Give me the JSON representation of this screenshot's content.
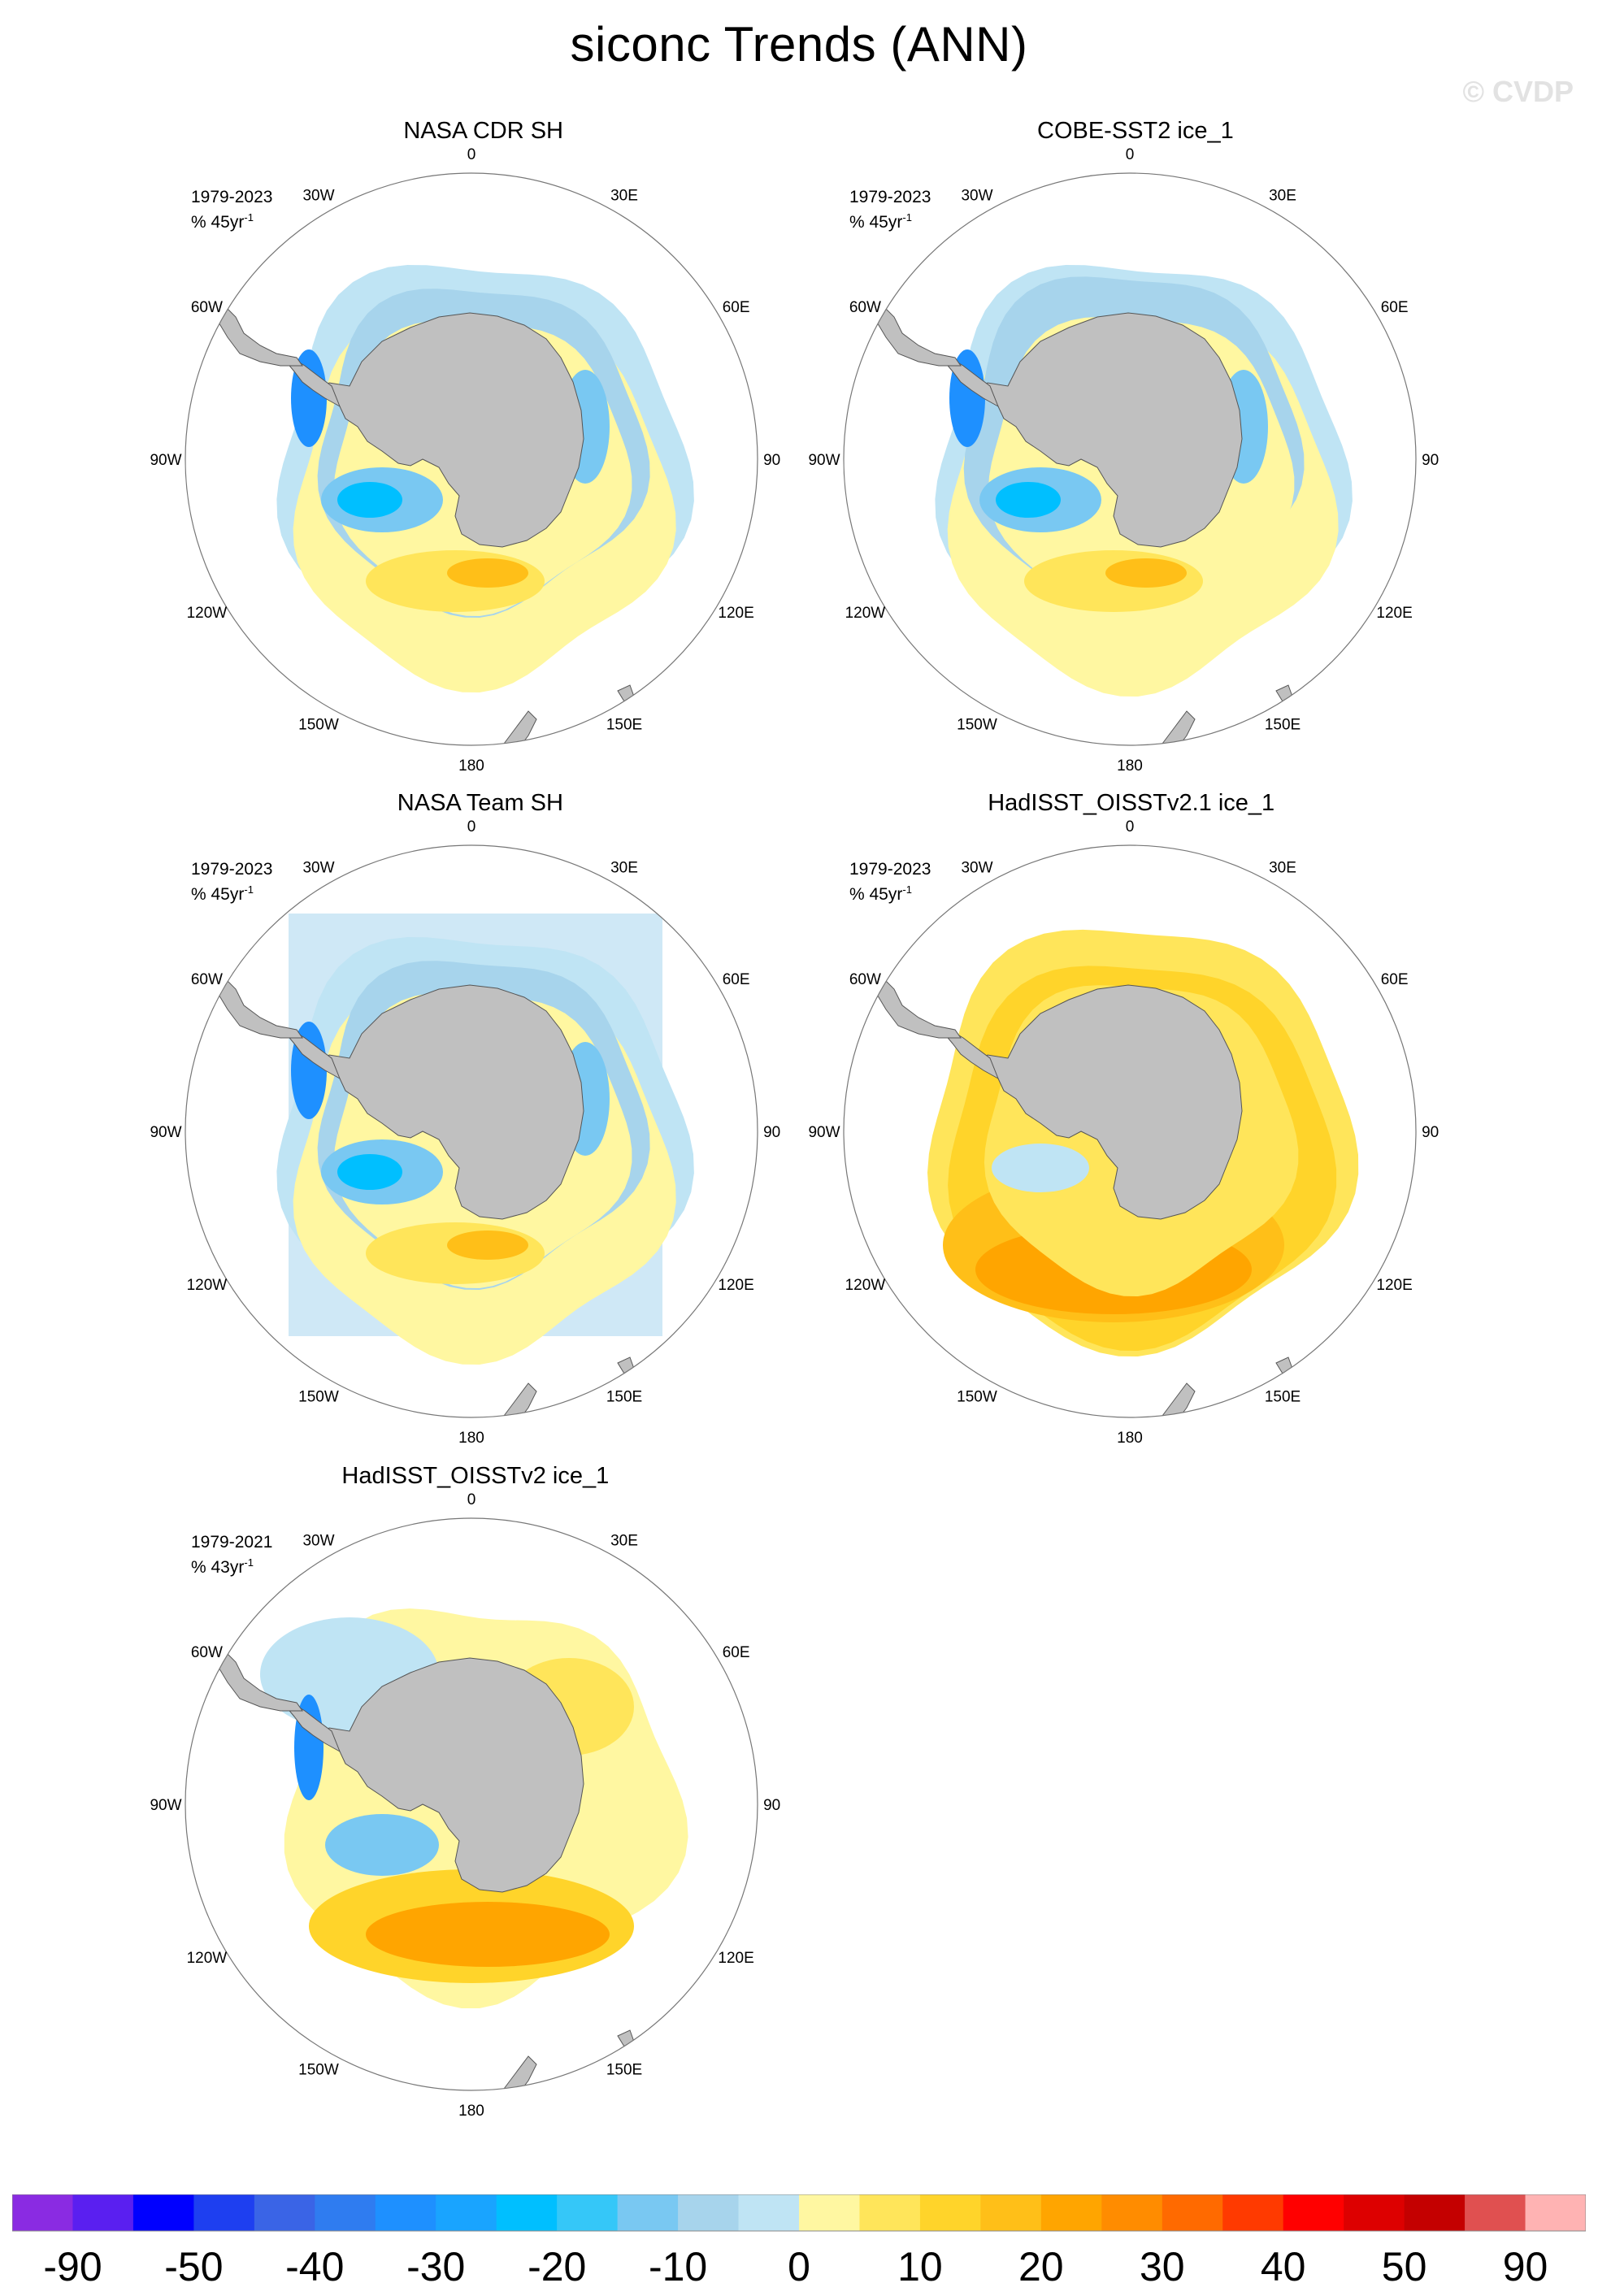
{
  "title": "siconc Trends (ANN)",
  "watermark": "© CVDP",
  "lon_labels": [
    "0",
    "30E",
    "60E",
    "90E",
    "120E",
    "150E",
    "180",
    "150W",
    "120W",
    "90W",
    "60W",
    "30W"
  ],
  "panels": [
    {
      "title": "NASA CDR SH",
      "period": "1979-2023",
      "units": "% 45yr",
      "units_exp": "-1",
      "pattern": "cdr"
    },
    {
      "title": "COBE-SST2 ice_1",
      "period": "1979-2023",
      "units": "% 45yr",
      "units_exp": "-1",
      "pattern": "cobe"
    },
    {
      "title": "NASA Team SH",
      "period": "1979-2023",
      "units": "% 45yr",
      "units_exp": "-1",
      "pattern": "team"
    },
    {
      "title": "HadISST_OISSTv2.1 ice_1",
      "period": "1979-2023",
      "units": "% 45yr",
      "units_exp": "-1",
      "pattern": "had21"
    },
    {
      "title": "HadISST_OISSTv2 ice_1",
      "period": "1979-2021",
      "units": "% 43yr",
      "units_exp": "-1",
      "pattern": "had2"
    }
  ],
  "colorbar": {
    "colors": [
      "#8a2be2",
      "#5a1ff0",
      "#0000ff",
      "#1e3ff0",
      "#3a64e6",
      "#2f7cf0",
      "#1e90ff",
      "#19a4ff",
      "#00bfff",
      "#35c7f8",
      "#79c8f2",
      "#a7d4ec",
      "#bfe4f4",
      "#fff7a1",
      "#ffe55a",
      "#ffd42a",
      "#ffbf18",
      "#ffa500",
      "#ff8c00",
      "#ff6a00",
      "#ff3a00",
      "#ff0000",
      "#dd0000",
      "#c40000",
      "#e05050",
      "#ffb3b3"
    ],
    "labels": [
      "-90",
      "-50",
      "-40",
      "-30",
      "-20",
      "-10",
      "0",
      "10",
      "20",
      "30",
      "40",
      "50",
      "90"
    ]
  }
}
